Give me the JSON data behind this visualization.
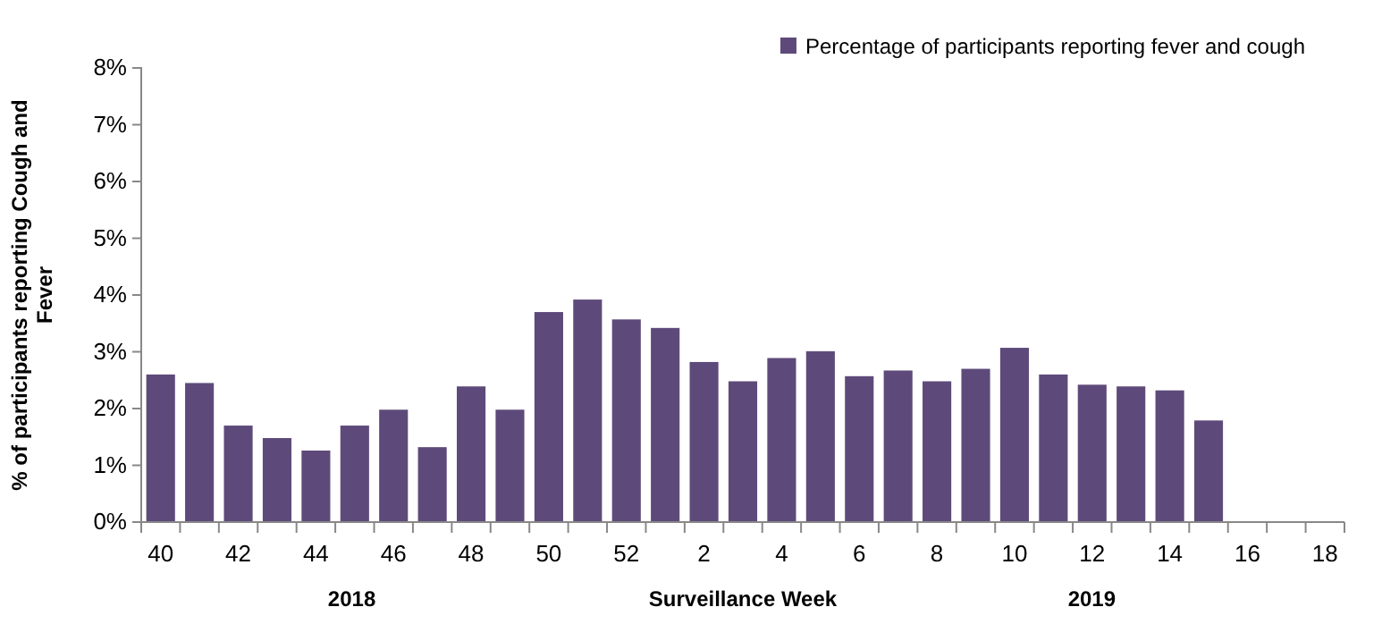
{
  "chart_data": {
    "type": "bar",
    "categories": [
      "40",
      null,
      "42",
      null,
      "44",
      null,
      "46",
      null,
      "48",
      null,
      "50",
      null,
      "52",
      null,
      "2",
      null,
      "4",
      null,
      "6",
      null,
      "8",
      null,
      "10",
      null,
      "12",
      null,
      "14",
      null,
      "16",
      null,
      "18"
    ],
    "series": [
      {
        "name": "Percentage of participants reporting fever and cough",
        "color": "#5e4a7a",
        "values": [
          2.6,
          2.45,
          1.7,
          1.48,
          1.26,
          1.7,
          1.98,
          1.32,
          2.39,
          1.98,
          3.7,
          3.92,
          3.57,
          3.42,
          2.82,
          2.48,
          2.89,
          3.01,
          2.57,
          2.67,
          2.48,
          2.7,
          3.07,
          2.6,
          2.42,
          2.39,
          2.32,
          1.79,
          null,
          null,
          null
        ]
      }
    ],
    "xlabel": "Surveillance Week",
    "ylabel": "% of participants reporting Cough and Fever",
    "annotations": [
      "2018",
      "2019"
    ],
    "ylim": [
      0,
      8
    ],
    "yticks": [
      {
        "value": 0,
        "label": "0%"
      },
      {
        "value": 1,
        "label": "1%"
      },
      {
        "value": 2,
        "label": "2%"
      },
      {
        "value": 3,
        "label": "3%"
      },
      {
        "value": 4,
        "label": "4%"
      },
      {
        "value": 5,
        "label": "5%"
      },
      {
        "value": 6,
        "label": "6%"
      },
      {
        "value": 7,
        "label": "7%"
      },
      {
        "value": 8,
        "label": "8%"
      }
    ],
    "legend": "top right",
    "grid": false
  }
}
